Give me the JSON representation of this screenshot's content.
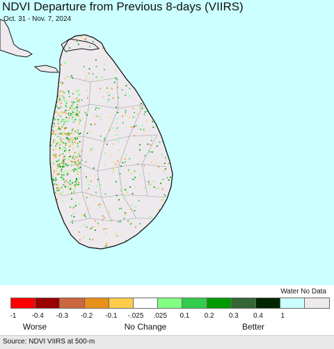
{
  "header": {
    "title": "NDVI Departure from Previous 8-days (VIIRS)",
    "date_range": "Oct. 31 - Nov. 7, 2024"
  },
  "map": {
    "sea_color": "#ccffff",
    "land_color": "#ede9ed",
    "boundary_color": "#9a9a9a",
    "coast_color": "#111111"
  },
  "legend": {
    "water_no_data_label": "Water No Data",
    "classes": [
      {
        "color": "#ff0000"
      },
      {
        "color": "#990000"
      },
      {
        "color": "#cc6640"
      },
      {
        "color": "#e8901c"
      },
      {
        "color": "#ffcc4c"
      },
      {
        "color": "#ffffff"
      },
      {
        "color": "#80ff80"
      },
      {
        "color": "#33cc4c"
      },
      {
        "color": "#009900"
      },
      {
        "color": "#336633"
      },
      {
        "color": "#002600"
      },
      {
        "color": "#ccffff"
      },
      {
        "color": "#ede9ed"
      }
    ],
    "tick_labels": [
      "-1",
      "-0.4",
      "-0.3",
      "-0.2",
      "-0.1",
      "-.025",
      ".025",
      "0.1",
      "0.2",
      "0.3",
      "0.4",
      "1"
    ],
    "worse_label": "Worse",
    "no_change_label": "No Change",
    "better_label": "Better"
  },
  "footer": {
    "source": "Source: NDVI VIIRS at 500-m"
  }
}
